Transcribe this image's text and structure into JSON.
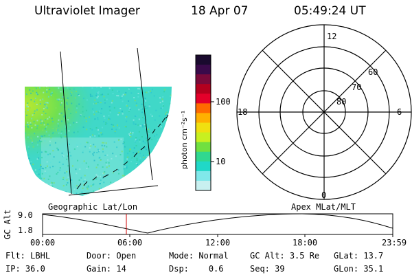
{
  "header": {
    "instrument": "Ultraviolet Imager",
    "date": "18 Apr 07",
    "time": "05:49:24 UT"
  },
  "colorbar": {
    "unit_label": "photon cm⁻²s⁻¹",
    "ticks": [
      "100",
      "10"
    ],
    "colors": [
      "#1a0a2e",
      "#3a0a4a",
      "#7a0a3a",
      "#b4001e",
      "#e4002a",
      "#ff6a00",
      "#ffb000",
      "#f0e010",
      "#c8f020",
      "#70e040",
      "#30d890",
      "#20d8c8",
      "#80e8ea",
      "#c8f0f0"
    ]
  },
  "polar_plot": {
    "mlt_labels": {
      "top": "12",
      "left": "18",
      "right": "6",
      "bottom": "0"
    },
    "lat_labels": [
      "60",
      "70",
      "80"
    ]
  },
  "image_panel": {
    "caption_left": "Geographic Lat/Lon",
    "caption_right": "Apex MLat/MLT"
  },
  "timeline": {
    "axis_label": "GC Alt",
    "y_ticks": [
      "9.0",
      "1.8"
    ],
    "x_ticks": [
      "00:00",
      "06:00",
      "12:00",
      "18:00",
      "23:59"
    ],
    "current_time_marker_color": "#cc0000"
  },
  "status": {
    "row1": [
      {
        "label": "Flt:",
        "value": "LBHL"
      },
      {
        "label": "Door:",
        "value": "Open"
      },
      {
        "label": "Mode:",
        "value": "Normal"
      },
      {
        "label": "GC Alt:",
        "value": "3.5 Re"
      },
      {
        "label": "GLat:",
        "value": "13.7"
      }
    ],
    "row2": [
      {
        "label": "IP:",
        "value": "36.0"
      },
      {
        "label": "Gain:",
        "value": "14"
      },
      {
        "label": "Dsp:",
        "value": "0.6"
      },
      {
        "label": "Seq:",
        "value": "39"
      },
      {
        "label": "GLon:",
        "value": "35.1"
      }
    ]
  }
}
